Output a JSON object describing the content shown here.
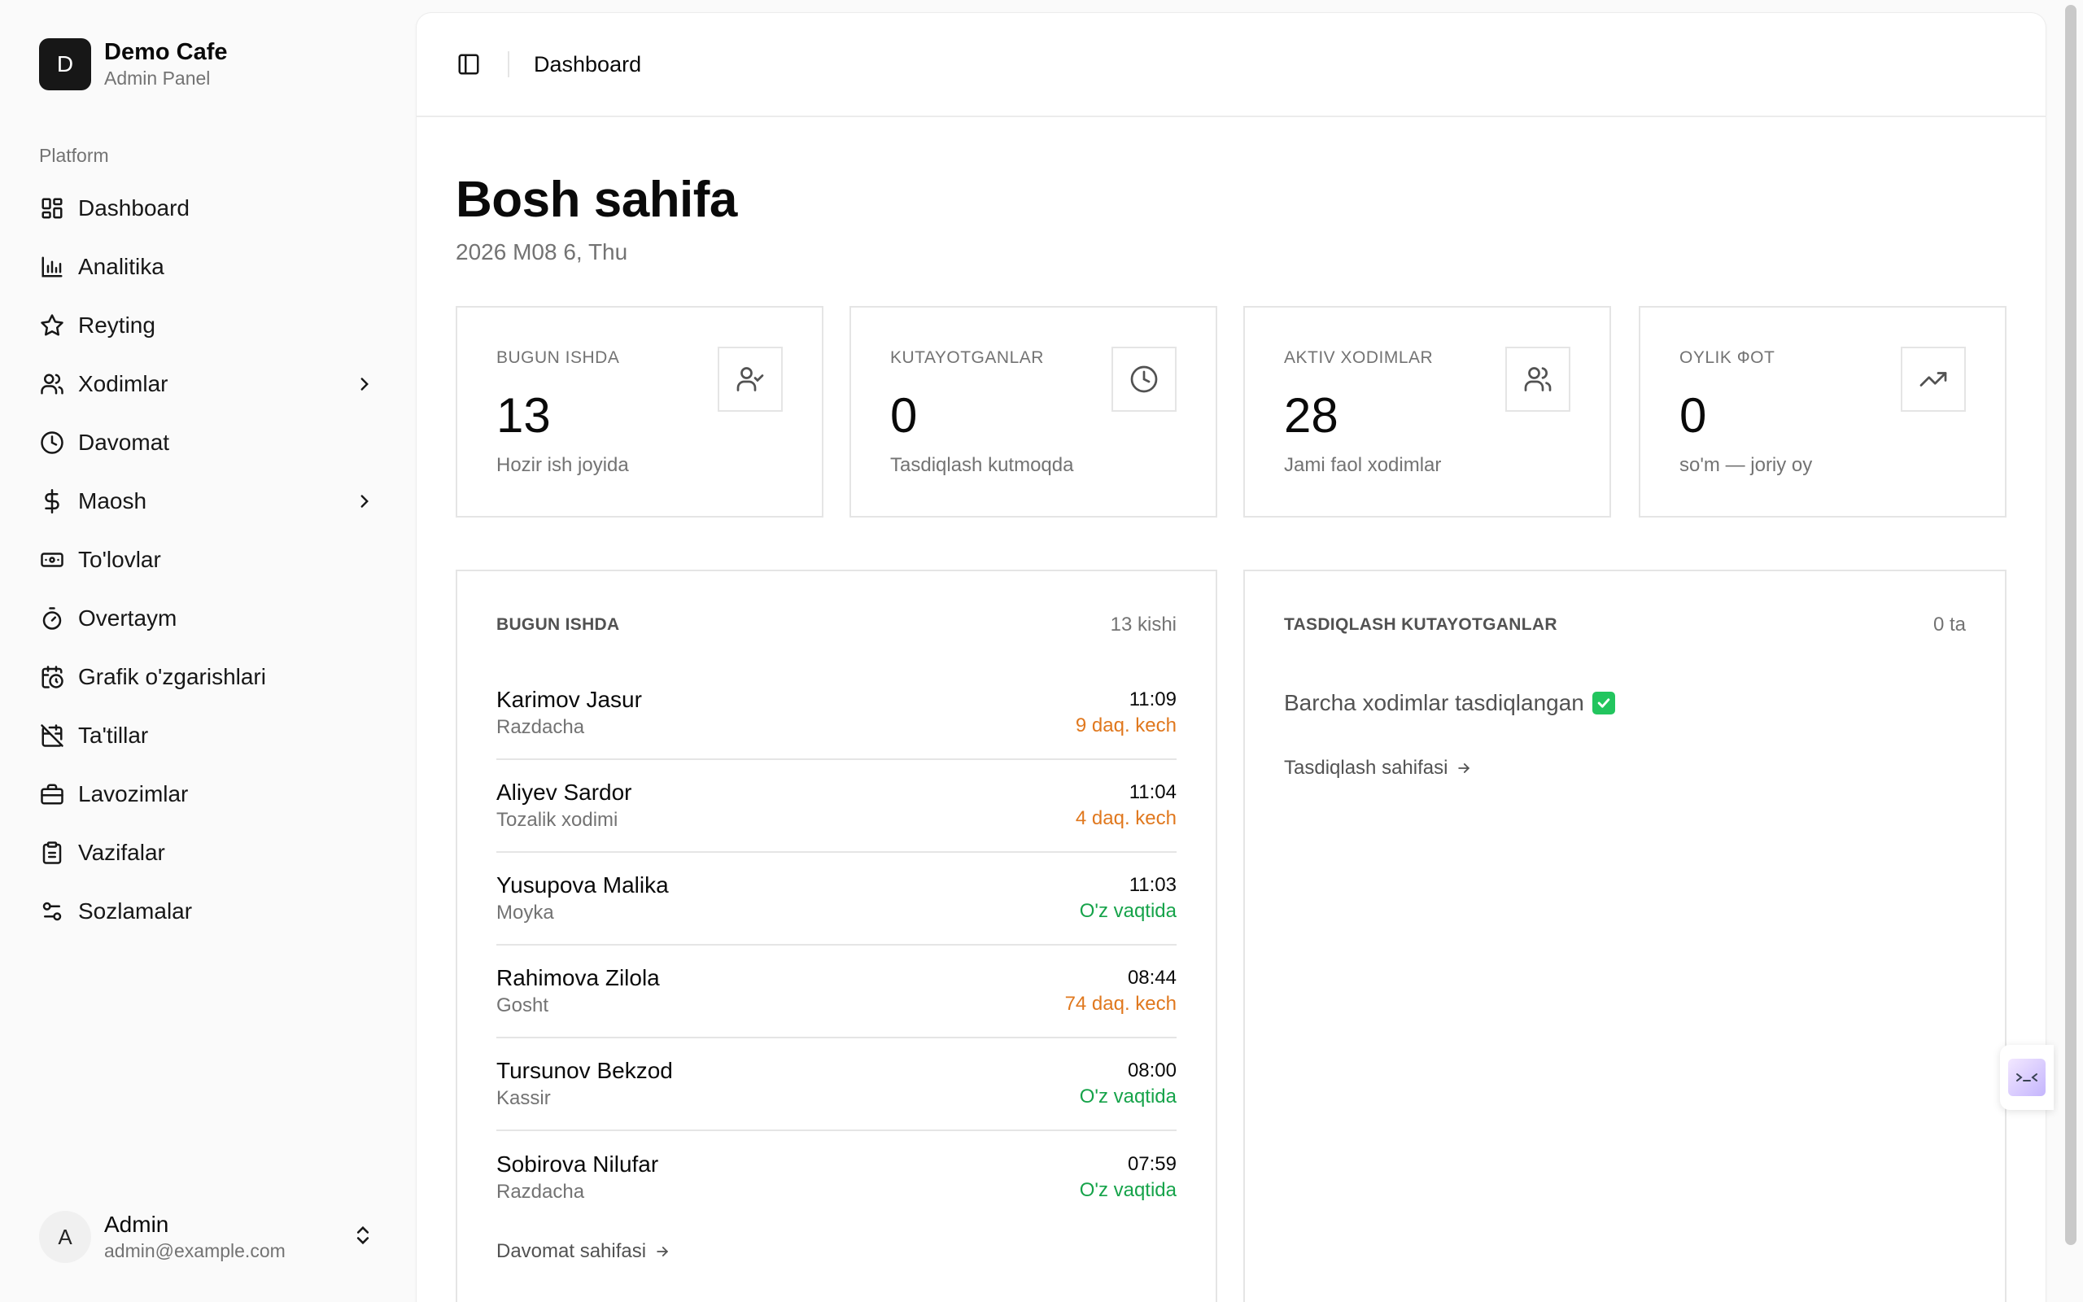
{
  "brand": {
    "initial": "D",
    "name": "Demo Cafe",
    "subtitle": "Admin Panel"
  },
  "sidebar": {
    "group_label": "Platform",
    "items": [
      {
        "label": "Dashboard",
        "icon": "dashboard-icon",
        "has_submenu": false
      },
      {
        "label": "Analitika",
        "icon": "bar-chart-icon",
        "has_submenu": false
      },
      {
        "label": "Reyting",
        "icon": "star-icon",
        "has_submenu": false
      },
      {
        "label": "Xodimlar",
        "icon": "users-icon",
        "has_submenu": true
      },
      {
        "label": "Davomat",
        "icon": "clock-icon",
        "has_submenu": false
      },
      {
        "label": "Maosh",
        "icon": "dollar-icon",
        "has_submenu": true
      },
      {
        "label": "To'lovlar",
        "icon": "banknote-icon",
        "has_submenu": false
      },
      {
        "label": "Overtaym",
        "icon": "timer-icon",
        "has_submenu": false
      },
      {
        "label": "Grafik o'zgarishlari",
        "icon": "calendar-clock-icon",
        "has_submenu": false
      },
      {
        "label": "Ta'tillar",
        "icon": "calendar-off-icon",
        "has_submenu": false
      },
      {
        "label": "Lavozimlar",
        "icon": "briefcase-icon",
        "has_submenu": false
      },
      {
        "label": "Vazifalar",
        "icon": "clipboard-icon",
        "has_submenu": false
      },
      {
        "label": "Sozlamalar",
        "icon": "settings-sliders-icon",
        "has_submenu": false
      }
    ]
  },
  "user": {
    "initial": "A",
    "name": "Admin",
    "email": "admin@example.com"
  },
  "header": {
    "breadcrumb": "Dashboard"
  },
  "page": {
    "title": "Bosh sahifa",
    "date": "2026 M08 6, Thu"
  },
  "stats": [
    {
      "label": "BUGUN ISHDA",
      "value": "13",
      "sub": "Hozir ish joyida",
      "icon": "user-check-icon"
    },
    {
      "label": "KUTAYOTGANLAR",
      "value": "0",
      "sub": "Tasdiqlash kutmoqda",
      "icon": "clock-icon"
    },
    {
      "label": "AKTIV XODIMLAR",
      "value": "28",
      "sub": "Jami faol xodimlar",
      "icon": "users-icon"
    },
    {
      "label": "OYLIK ФОТ",
      "value": "0",
      "sub": "so'm — joriy oy",
      "icon": "trending-up-icon"
    }
  ],
  "today": {
    "title": "BUGUN ISHDA",
    "count": "13 kishi",
    "rows": [
      {
        "name": "Karimov Jasur",
        "role": "Razdacha",
        "time": "11:09",
        "status": "9 daq. kech",
        "late": true
      },
      {
        "name": "Aliyev Sardor",
        "role": "Tozalik xodimi",
        "time": "11:04",
        "status": "4 daq. kech",
        "late": true
      },
      {
        "name": "Yusupova Malika",
        "role": "Moyka",
        "time": "11:03",
        "status": "O'z vaqtida",
        "late": false
      },
      {
        "name": "Rahimova Zilola",
        "role": "Gosht",
        "time": "08:44",
        "status": "74 daq. kech",
        "late": true
      },
      {
        "name": "Tursunov Bekzod",
        "role": "Kassir",
        "time": "08:00",
        "status": "O'z vaqtida",
        "late": false
      },
      {
        "name": "Sobirova Nilufar",
        "role": "Razdacha",
        "time": "07:59",
        "status": "O'z vaqtida",
        "late": false
      }
    ],
    "link": "Davomat sahifasi"
  },
  "pending": {
    "title": "TASDIQLASH KUTAYOTGANLAR",
    "count": "0 ta",
    "message": "Barcha xodimlar tasdiqlangan",
    "link": "Tasdiqlash sahifasi"
  },
  "colors": {
    "late": "#e0781e",
    "ontime": "#16a34a",
    "brand": "#171717"
  }
}
